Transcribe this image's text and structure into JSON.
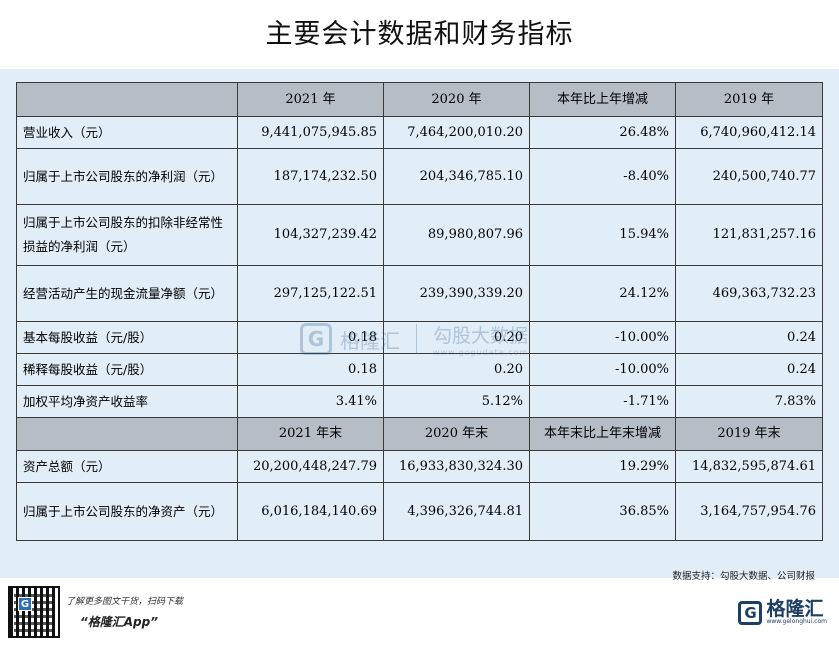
{
  "title": "主要会计数据和财务指标",
  "header1": {
    "col1": "2021 年",
    "col2": "2020 年",
    "col3": "本年比上年增减",
    "col4": "2019 年"
  },
  "rows1": [
    {
      "label": "营业收入（元）",
      "v2021": "9,441,075,945.85",
      "v2020": "7,464,200,010.20",
      "change": "26.48%",
      "v2019": "6,740,960,412.14"
    },
    {
      "label": "归属于上市公司股东的净利润（元）",
      "v2021": "187,174,232.50",
      "v2020": "204,346,785.10",
      "change": "-8.40%",
      "v2019": "240,500,740.77"
    },
    {
      "label": "归属于上市公司股东的扣除非经常性损益的净利润（元）",
      "v2021": "104,327,239.42",
      "v2020": "89,980,807.96",
      "change": "15.94%",
      "v2019": "121,831,257.16"
    },
    {
      "label": "经营活动产生的现金流量净额（元）",
      "v2021": "297,125,122.51",
      "v2020": "239,390,339.20",
      "change": "24.12%",
      "v2019": "469,363,732.23"
    },
    {
      "label": "基本每股收益（元/股）",
      "v2021": "0.18",
      "v2020": "0.20",
      "change": "-10.00%",
      "v2019": "0.24"
    },
    {
      "label": "稀释每股收益（元/股）",
      "v2021": "0.18",
      "v2020": "0.20",
      "change": "-10.00%",
      "v2019": "0.24"
    },
    {
      "label": "加权平均净资产收益率",
      "v2021": "3.41%",
      "v2020": "5.12%",
      "change": "-1.71%",
      "v2019": "7.83%"
    }
  ],
  "header2": {
    "col1": "2021 年末",
    "col2": "2020 年末",
    "col3": "本年末比上年末增减",
    "col4": "2019 年末"
  },
  "rows2": [
    {
      "label": "资产总额（元）",
      "v2021": "20,200,448,247.79",
      "v2020": "16,933,830,324.30",
      "change": "19.29%",
      "v2019": "14,832,595,874.61"
    },
    {
      "label": "归属于上市公司股东的净资产（元）",
      "v2021": "6,016,184,140.69",
      "v2020": "4,396,326,744.81",
      "change": "36.85%",
      "v2019": "3,164,757,954.76"
    }
  ],
  "source_note": "数据支持：勾股大数据、公司财报",
  "watermark": {
    "logo_letter": "G",
    "brand": "格隆汇",
    "sub_brand": "勾股大数据",
    "sub_url": "www.gogudata.com"
  },
  "footer": {
    "promo_line": "了解更多图文干货，扫码下载",
    "app_name": "“格隆汇App”",
    "qr_badge": "G",
    "brand_logo_letter": "G",
    "brand_name": "格隆汇",
    "brand_url": "www.gelonghui.com"
  }
}
